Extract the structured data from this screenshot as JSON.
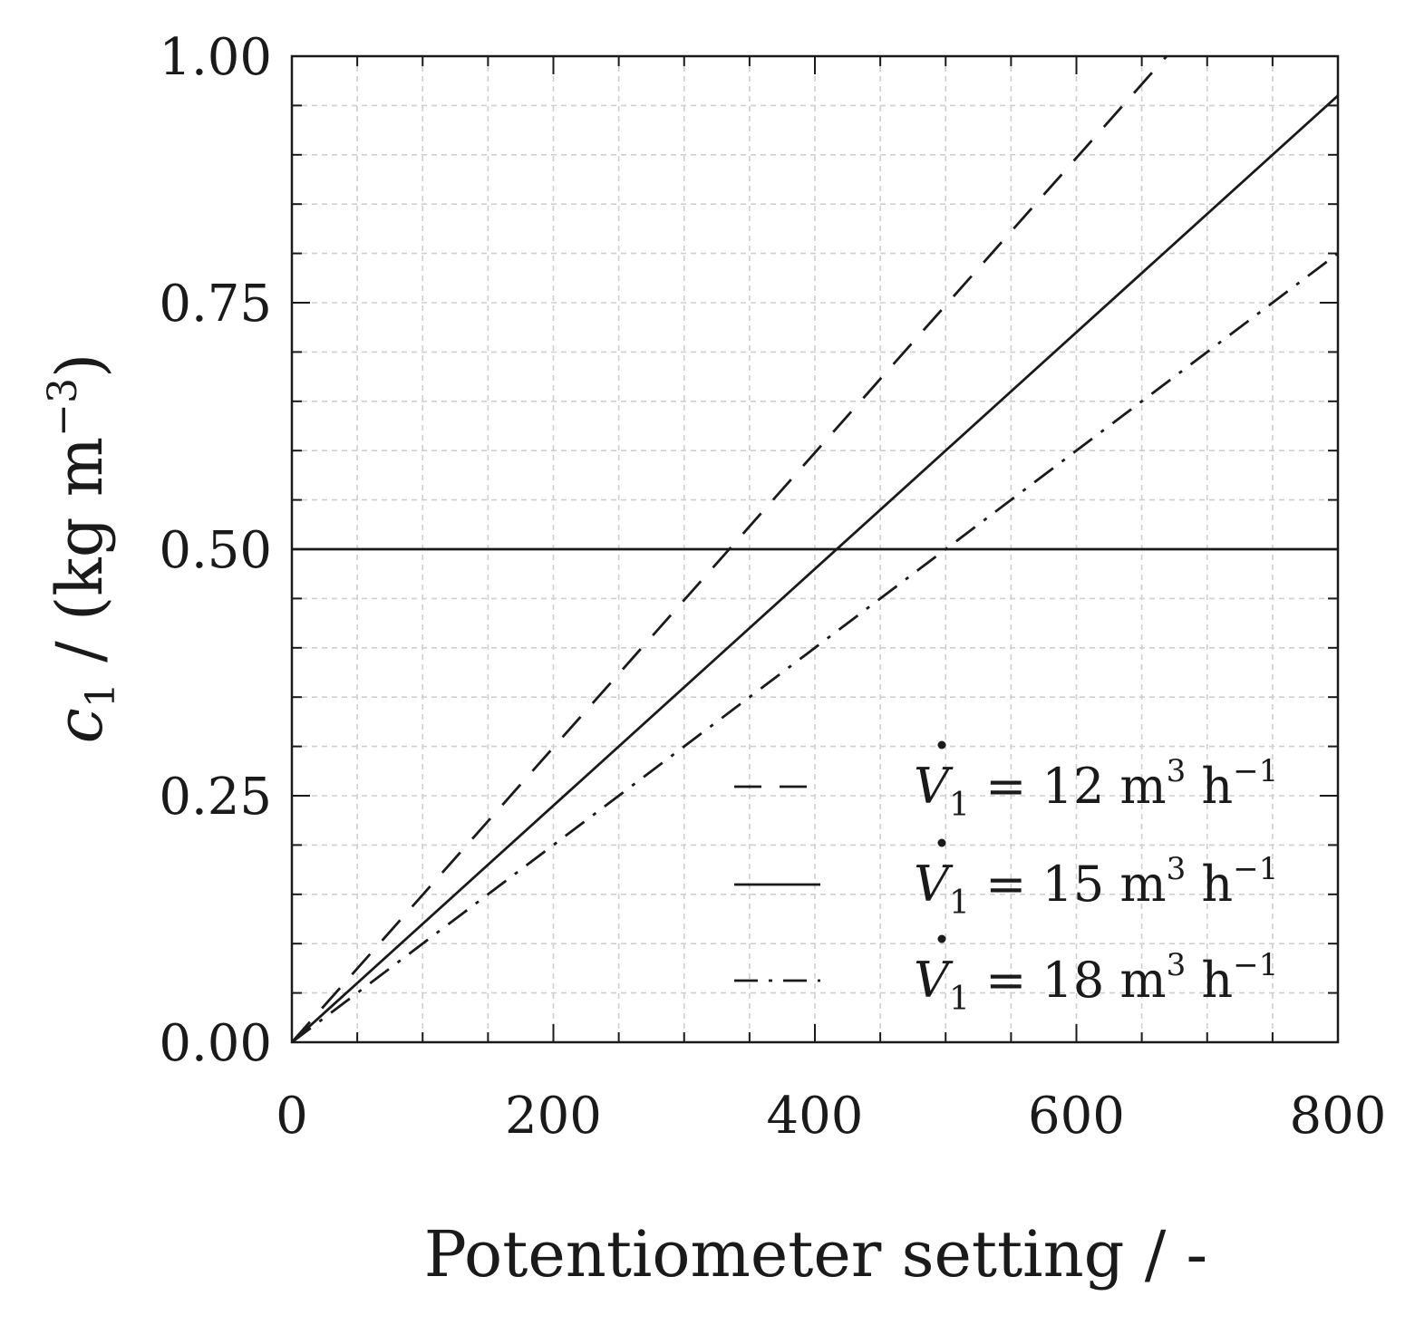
{
  "chart_data": {
    "type": "line",
    "xlabel": "Potentiometer setting / -",
    "ylabel": {
      "symbol": "c",
      "subscript": "1",
      "unit_text": " / (kg m",
      "unit_exp": "−3",
      "unit_close": ")"
    },
    "xlim": [
      0,
      800
    ],
    "ylim": [
      0,
      1.0
    ],
    "xticks": [
      0,
      200,
      400,
      600,
      800
    ],
    "xtick_labels": [
      "0",
      "200",
      "400",
      "600",
      "800"
    ],
    "yticks": [
      0.0,
      0.25,
      0.5,
      0.75,
      1.0
    ],
    "ytick_labels": [
      "0.00",
      "0.25",
      "0.50",
      "0.75",
      "1.00"
    ],
    "x_minor_step": 50,
    "y_minor_step": 0.05,
    "grid": true,
    "legend_position": "bottom-right",
    "series": [
      {
        "name": "V̇1 = 12 m3 h−1",
        "legend": {
          "symbol": "V",
          "sub": "1",
          "eq": "= 12 m",
          "exp1": "3",
          "unit2": "h",
          "exp2": "−1"
        },
        "style": "dashed",
        "x": [
          0,
          669
        ],
        "y": [
          0.0,
          1.0
        ]
      },
      {
        "name": "V̇1 = 15 m3 h−1",
        "legend": {
          "symbol": "V",
          "sub": "1",
          "eq": "= 15 m",
          "exp1": "3",
          "unit2": "h",
          "exp2": "−1"
        },
        "style": "solid",
        "x": [
          0,
          800
        ],
        "y": [
          0.0,
          0.96
        ]
      },
      {
        "name": "V̇1 = 18 m3 h−1",
        "legend": {
          "symbol": "V",
          "sub": "1",
          "eq": "= 18 m",
          "exp1": "3",
          "unit2": "h",
          "exp2": "−1"
        },
        "style": "dashdot",
        "x": [
          0,
          800
        ],
        "y": [
          0.0,
          0.8
        ]
      }
    ],
    "reference_lines": [
      {
        "orientation": "horizontal",
        "y": 0.5,
        "style": "solid"
      }
    ],
    "colors": {
      "line": "#1a1a1a",
      "frame": "#1a1a1a",
      "grid": "#cfcfcf",
      "background": "#ffffff"
    }
  }
}
